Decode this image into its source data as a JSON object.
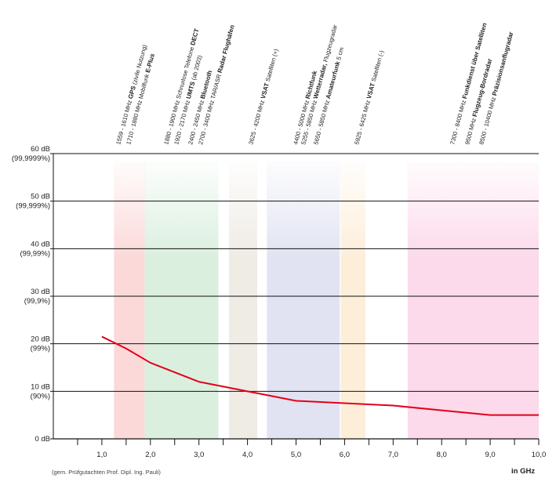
{
  "chart_data": {
    "type": "line",
    "xlabel": "in GHz",
    "ylabel": "",
    "xlim": [
      0,
      10
    ],
    "ylim": [
      0,
      60
    ],
    "x_ticks": [
      "1,0",
      "2,0",
      "3,0",
      "4,0",
      "5,0",
      "6,0",
      "7,0",
      "8,0",
      "9,0",
      "10,0"
    ],
    "y_ticks": [
      {
        "value": 0,
        "db": "0 dB",
        "pct": ""
      },
      {
        "value": 10,
        "db": "10 dB",
        "pct": "(90%)"
      },
      {
        "value": 20,
        "db": "20 dB",
        "pct": "(99%)"
      },
      {
        "value": 30,
        "db": "30 dB",
        "pct": "(99,9%)"
      },
      {
        "value": 40,
        "db": "40 dB",
        "pct": "(99,99%)"
      },
      {
        "value": 50,
        "db": "50 dB",
        "pct": "(99,999%)"
      },
      {
        "value": 60,
        "db": "60 dB",
        "pct": "(99,9999%)"
      }
    ],
    "grid": true,
    "series": [
      {
        "color": "#e3001b",
        "x": [
          1.0,
          1.5,
          2.0,
          2.5,
          3.0,
          3.5,
          4.0,
          4.5,
          5.0,
          6.0,
          7.0,
          8.0,
          9.0,
          10.0
        ],
        "y": [
          21.5,
          19.0,
          16.0,
          14.0,
          12.0,
          11.0,
          10.0,
          9.0,
          8.0,
          7.5,
          7.0,
          6.0,
          5.0,
          5.0
        ]
      }
    ],
    "bands": [
      {
        "x0": 1.25,
        "x1": 1.88,
        "color": "#f6a5a5"
      },
      {
        "x0": 1.88,
        "x1": 3.4,
        "color": "#a9d8b2"
      },
      {
        "x0": 3.62,
        "x1": 4.2,
        "color": "#d9cfc2"
      },
      {
        "x0": 4.4,
        "x1": 5.9,
        "color": "#b7bde0"
      },
      {
        "x0": 5.92,
        "x1": 6.43,
        "color": "#fbd7a6"
      },
      {
        "x0": 7.3,
        "x1": 10.0,
        "color": "#f7a8d0"
      }
    ],
    "band_labels": [
      {
        "x": 1.59,
        "range": "1559 - 1610 MHz",
        "name": "GPS",
        "note": "(zivile Nutzung)"
      },
      {
        "x": 1.71,
        "range": "1710 - 1880 MHz Mobilfunk",
        "name": "E-Plus",
        "note": ""
      },
      {
        "x": 1.88,
        "range": "1880 - 1900 MHz Schnurlose Telefone",
        "name": "DECT",
        "note": ""
      },
      {
        "x": 1.92,
        "range": "1920 - 2170 MHz",
        "name": "UMTS",
        "note": "(ab 2003)"
      },
      {
        "x": 2.4,
        "range": "2400 - 2450 MHz",
        "name": "Bluetooth",
        "note": ""
      },
      {
        "x": 2.7,
        "range": "2700 - 3400 MHz TAR/ASR",
        "name": "Radar Flughäfen",
        "note": ""
      },
      {
        "x": 3.625,
        "range": "3625 - 4200 MHz",
        "name": "VSAT",
        "note": "Satelliten (+)"
      },
      {
        "x": 4.4,
        "range": "4400 - 5000 MHz",
        "name": "Richtfunk",
        "note": ""
      },
      {
        "x": 5.255,
        "range": "5255 - 5850 MHz",
        "name": "Wetterradar,",
        "note": "Flugzeugradar"
      },
      {
        "x": 5.65,
        "range": "5650 - 5850 MHz",
        "name": "Amateurfunk",
        "note": "5 cm"
      },
      {
        "x": 5.925,
        "range": "5925 - 6425 MHz",
        "name": "VSAT",
        "note": "Satelliten (-)"
      },
      {
        "x": 7.3,
        "range": "7300 - 8400 MHz",
        "name": "Funkdienst über Satelliten",
        "note": ""
      },
      {
        "x": 9.5,
        "range": "9500 MHz",
        "name": "Flugzeug-Bordradar",
        "note": ""
      },
      {
        "x": 8.5,
        "range": "8500 - 10400 MHz",
        "name": "Präzisionsanflugradar",
        "note": ""
      }
    ]
  },
  "footnote": "(gem. Prüfgutachten Prof. Dipl. Ing. Pauli)",
  "unit_label": "in GHz"
}
